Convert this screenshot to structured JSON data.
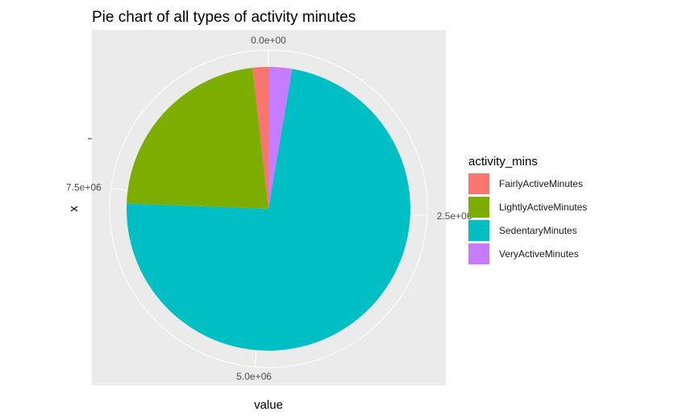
{
  "chart_data": {
    "type": "pie",
    "title": "Pie chart of all types of activity minutes",
    "xlabel": "value",
    "ylabel": "x",
    "theta_ticks": [
      {
        "value": 0,
        "label": "0.0e+00"
      },
      {
        "value": 2500000,
        "label": "2.5e+06"
      },
      {
        "value": 5000000,
        "label": "5.0e+06"
      },
      {
        "value": 7500000,
        "label": "7.5e+06"
      }
    ],
    "legend": {
      "title": "activity_mins",
      "position": "right"
    },
    "slices": [
      {
        "name": "FairlyActiveMinutes",
        "value": 175000,
        "color": "#F8766D"
      },
      {
        "name": "LightlyActiveMinutes",
        "value": 2200000,
        "color": "#7CAE00"
      },
      {
        "name": "SedentaryMinutes",
        "value": 7100000,
        "color": "#00BFC4"
      },
      {
        "name": "VeryActiveMinutes",
        "value": 260000,
        "color": "#C77CFF"
      }
    ],
    "stack_order": [
      "VeryActiveMinutes",
      "SedentaryMinutes",
      "LightlyActiveMinutes",
      "FairlyActiveMinutes"
    ],
    "panel_background": "#EBEBEB",
    "grid_color": "#FFFFFF"
  }
}
